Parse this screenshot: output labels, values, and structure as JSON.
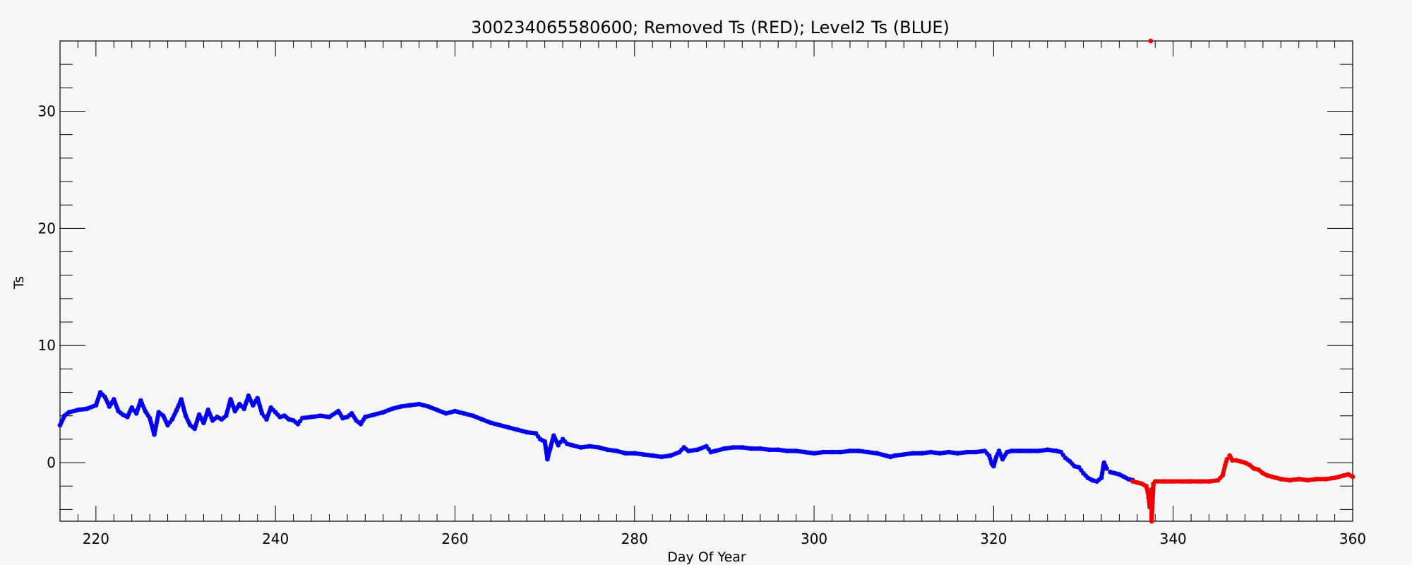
{
  "chart_data": {
    "type": "scatter",
    "title": "300234065580600; Removed Ts (RED); Level2 Ts (BLUE)",
    "xlabel": "Day Of Year",
    "ylabel": "Ts",
    "xlim": [
      216,
      360
    ],
    "ylim": [
      -5,
      36
    ],
    "xticks": [
      220,
      240,
      260,
      280,
      300,
      320,
      340,
      360
    ],
    "yticks": [
      0,
      10,
      20,
      30
    ],
    "grid": false,
    "colors": {
      "blue": "#0000ee",
      "red": "#ee0000",
      "axis": "#000000",
      "background": "#f6f6f6"
    },
    "series": [
      {
        "color": "blue",
        "points": [
          [
            216,
            3.2
          ],
          [
            216.5,
            4.0
          ],
          [
            217,
            4.3
          ],
          [
            218,
            4.5
          ],
          [
            219,
            4.6
          ],
          [
            220,
            4.9
          ],
          [
            220.5,
            6.0
          ],
          [
            221,
            5.6
          ],
          [
            221.5,
            4.8
          ],
          [
            222,
            5.4
          ],
          [
            222.5,
            4.4
          ],
          [
            223,
            4.1
          ],
          [
            223.5,
            3.9
          ],
          [
            224,
            4.7
          ],
          [
            224.5,
            4.2
          ],
          [
            225,
            5.3
          ],
          [
            225.5,
            4.4
          ],
          [
            226,
            3.8
          ],
          [
            226.5,
            2.4
          ],
          [
            227,
            4.3
          ],
          [
            227.5,
            4.0
          ],
          [
            228,
            3.2
          ],
          [
            228.5,
            3.7
          ],
          [
            229,
            4.5
          ],
          [
            229.5,
            5.4
          ],
          [
            230,
            4.0
          ],
          [
            230.5,
            3.2
          ],
          [
            231,
            2.9
          ],
          [
            231.5,
            4.1
          ],
          [
            232,
            3.4
          ],
          [
            232.5,
            4.5
          ],
          [
            233,
            3.6
          ],
          [
            233.5,
            3.9
          ],
          [
            234,
            3.7
          ],
          [
            234.5,
            4.0
          ],
          [
            235,
            5.4
          ],
          [
            235.5,
            4.4
          ],
          [
            236,
            5.0
          ],
          [
            236.5,
            4.6
          ],
          [
            237,
            5.7
          ],
          [
            237.5,
            4.9
          ],
          [
            238,
            5.5
          ],
          [
            238.5,
            4.2
          ],
          [
            239,
            3.7
          ],
          [
            239.5,
            4.7
          ],
          [
            240,
            4.3
          ],
          [
            240.5,
            3.9
          ],
          [
            241,
            4.0
          ],
          [
            241.5,
            3.7
          ],
          [
            242,
            3.6
          ],
          [
            242.5,
            3.3
          ],
          [
            243,
            3.8
          ],
          [
            244,
            3.9
          ],
          [
            245,
            4.0
          ],
          [
            246,
            3.9
          ],
          [
            247,
            4.4
          ],
          [
            247.5,
            3.8
          ],
          [
            248,
            3.9
          ],
          [
            248.5,
            4.2
          ],
          [
            249,
            3.6
          ],
          [
            249.5,
            3.3
          ],
          [
            250,
            3.9
          ],
          [
            251,
            4.1
          ],
          [
            252,
            4.3
          ],
          [
            253,
            4.6
          ],
          [
            254,
            4.8
          ],
          [
            255,
            4.9
          ],
          [
            256,
            5.0
          ],
          [
            257,
            4.8
          ],
          [
            258,
            4.5
          ],
          [
            259,
            4.2
          ],
          [
            260,
            4.4
          ],
          [
            261,
            4.2
          ],
          [
            262,
            4.0
          ],
          [
            263,
            3.7
          ],
          [
            264,
            3.4
          ],
          [
            265,
            3.2
          ],
          [
            266,
            3.0
          ],
          [
            267,
            2.8
          ],
          [
            268,
            2.6
          ],
          [
            269,
            2.5
          ],
          [
            269.5,
            2.0
          ],
          [
            270,
            1.8
          ],
          [
            270.3,
            0.3
          ],
          [
            270.6,
            1.2
          ],
          [
            271,
            2.3
          ],
          [
            271.5,
            1.5
          ],
          [
            272,
            2.0
          ],
          [
            272.5,
            1.6
          ],
          [
            273,
            1.5
          ],
          [
            274,
            1.3
          ],
          [
            275,
            1.4
          ],
          [
            276,
            1.3
          ],
          [
            277,
            1.1
          ],
          [
            278,
            1.0
          ],
          [
            279,
            0.8
          ],
          [
            280,
            0.8
          ],
          [
            281,
            0.7
          ],
          [
            282,
            0.6
          ],
          [
            283,
            0.5
          ],
          [
            284,
            0.6
          ],
          [
            285,
            0.9
          ],
          [
            285.5,
            1.3
          ],
          [
            286,
            1.0
          ],
          [
            287,
            1.1
          ],
          [
            288,
            1.4
          ],
          [
            288.5,
            0.9
          ],
          [
            289,
            1.0
          ],
          [
            290,
            1.2
          ],
          [
            291,
            1.3
          ],
          [
            292,
            1.3
          ],
          [
            293,
            1.2
          ],
          [
            294,
            1.2
          ],
          [
            295,
            1.1
          ],
          [
            296,
            1.1
          ],
          [
            297,
            1.0
          ],
          [
            298,
            1.0
          ],
          [
            299,
            0.9
          ],
          [
            300,
            0.8
          ],
          [
            301,
            0.9
          ],
          [
            302,
            0.9
          ],
          [
            303,
            0.9
          ],
          [
            304,
            1.0
          ],
          [
            305,
            1.0
          ],
          [
            306,
            0.9
          ],
          [
            307,
            0.8
          ],
          [
            308,
            0.6
          ],
          [
            308.5,
            0.5
          ],
          [
            309,
            0.6
          ],
          [
            310,
            0.7
          ],
          [
            311,
            0.8
          ],
          [
            312,
            0.8
          ],
          [
            313,
            0.9
          ],
          [
            314,
            0.8
          ],
          [
            315,
            0.9
          ],
          [
            316,
            0.8
          ],
          [
            317,
            0.9
          ],
          [
            318,
            0.9
          ],
          [
            319,
            1.0
          ],
          [
            319.5,
            0.6
          ],
          [
            319.8,
            -0.1
          ],
          [
            320,
            -0.3
          ],
          [
            320.3,
            0.5
          ],
          [
            320.6,
            1.0
          ],
          [
            321,
            0.3
          ],
          [
            321.5,
            0.9
          ],
          [
            322,
            1.0
          ],
          [
            323,
            1.0
          ],
          [
            324,
            1.0
          ],
          [
            325,
            1.0
          ],
          [
            326,
            1.1
          ],
          [
            327,
            1.0
          ],
          [
            327.5,
            0.9
          ],
          [
            328,
            0.4
          ],
          [
            328.5,
            0.1
          ],
          [
            329,
            -0.3
          ],
          [
            329.5,
            -0.4
          ],
          [
            330,
            -0.9
          ],
          [
            330.5,
            -1.3
          ],
          [
            331,
            -1.5
          ],
          [
            331.5,
            -1.6
          ],
          [
            332,
            -1.3
          ],
          [
            332.3,
            0.0
          ],
          [
            332.6,
            -0.5
          ],
          [
            333,
            -0.8
          ],
          [
            333.5,
            -0.9
          ],
          [
            334,
            -1.0
          ],
          [
            334.5,
            -1.2
          ],
          [
            335,
            -1.4
          ],
          [
            335.5,
            -1.5
          ]
        ]
      },
      {
        "color": "red",
        "points": [
          [
            335.5,
            -1.6
          ],
          [
            336,
            -1.7
          ],
          [
            336.5,
            -1.8
          ],
          [
            337,
            -2.0
          ],
          [
            337.2,
            -2.6
          ],
          [
            337.4,
            -3.8
          ],
          [
            337.6,
            -2.3
          ],
          [
            337.8,
            -1.8
          ],
          [
            337.5,
            36
          ],
          [
            337.6,
            -5.0
          ],
          [
            338,
            -1.6
          ],
          [
            339,
            -1.6
          ],
          [
            340,
            -1.6
          ],
          [
            341,
            -1.6
          ],
          [
            342,
            -1.6
          ],
          [
            343,
            -1.6
          ],
          [
            344,
            -1.6
          ],
          [
            345,
            -1.5
          ],
          [
            345.5,
            -1.1
          ],
          [
            345.8,
            -0.2
          ],
          [
            346,
            0.3
          ],
          [
            346.3,
            0.6
          ],
          [
            346.6,
            0.2
          ],
          [
            347,
            0.2
          ],
          [
            347.5,
            0.1
          ],
          [
            348,
            0.0
          ],
          [
            348.5,
            -0.2
          ],
          [
            349,
            -0.5
          ],
          [
            349.5,
            -0.6
          ],
          [
            350,
            -0.9
          ],
          [
            350.5,
            -1.1
          ],
          [
            351,
            -1.2
          ],
          [
            351.5,
            -1.3
          ],
          [
            352,
            -1.4
          ],
          [
            353,
            -1.5
          ],
          [
            354,
            -1.4
          ],
          [
            355,
            -1.5
          ],
          [
            356,
            -1.4
          ],
          [
            357,
            -1.4
          ],
          [
            358,
            -1.3
          ],
          [
            358.5,
            -1.2
          ],
          [
            359,
            -1.1
          ],
          [
            359.5,
            -1.0
          ],
          [
            360,
            -1.2
          ]
        ]
      }
    ]
  }
}
